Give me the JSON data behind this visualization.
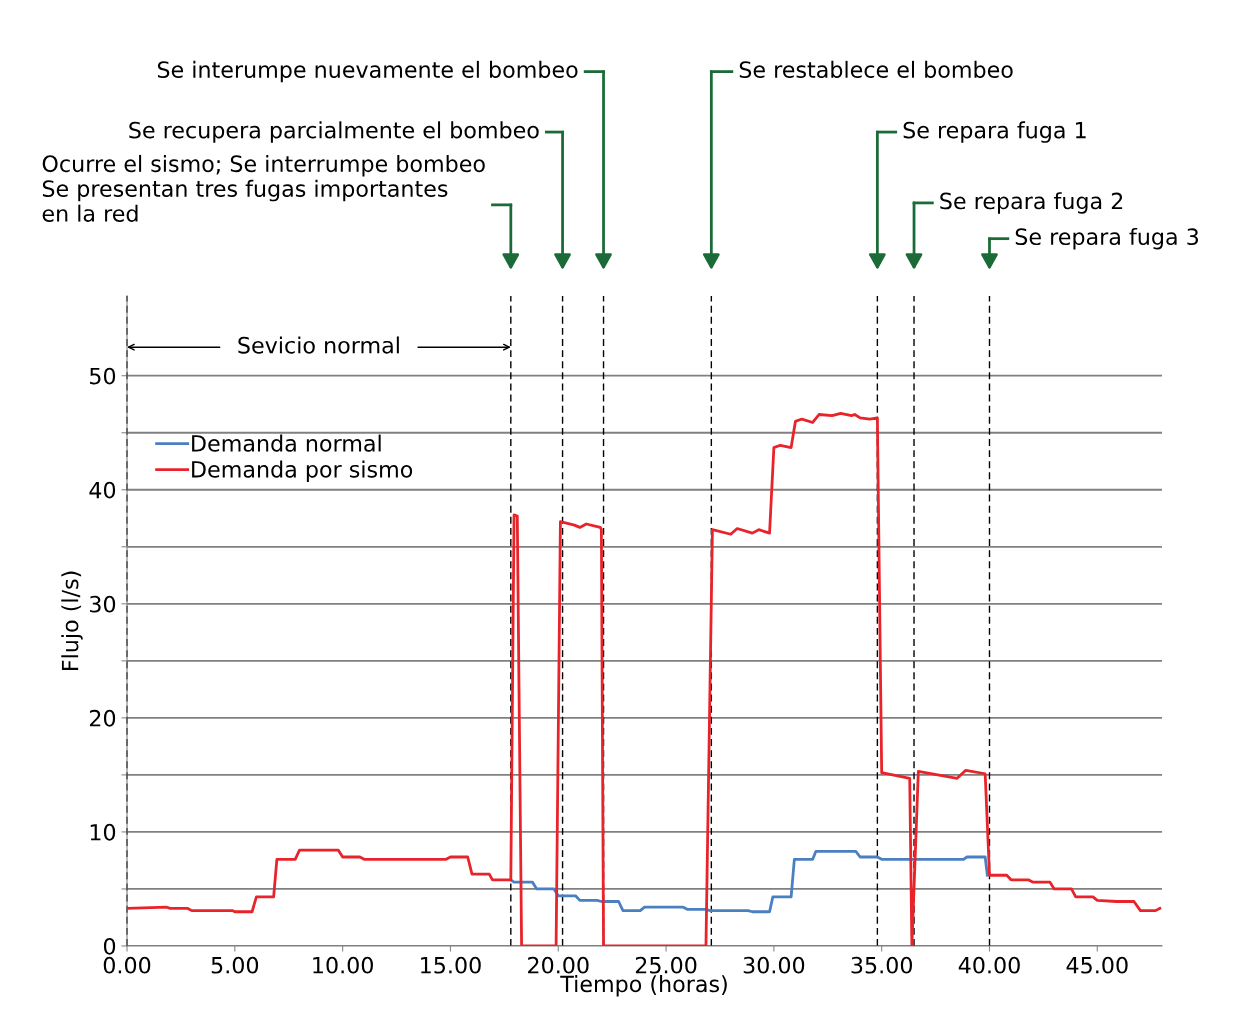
{
  "chart_data": {
    "type": "line",
    "xlabel": "Tiempo (horas)",
    "ylabel": "Flujo (l/s)",
    "xlim": [
      0,
      48
    ],
    "ylim": [
      0,
      57
    ],
    "xticks": [
      {
        "value": 0,
        "label": "0.00"
      },
      {
        "value": 5,
        "label": "5.00"
      },
      {
        "value": 10,
        "label": "10.00"
      },
      {
        "value": 15,
        "label": "15.00"
      },
      {
        "value": 20,
        "label": "20.00"
      },
      {
        "value": 25,
        "label": "25.00"
      },
      {
        "value": 30,
        "label": "30.00"
      },
      {
        "value": 35,
        "label": "35.00"
      },
      {
        "value": 40,
        "label": "40.00"
      },
      {
        "value": 45,
        "label": "45.00"
      }
    ],
    "yticks": [
      0,
      {
        "value": 5,
        "label": null
      },
      10,
      {
        "value": 15,
        "label": null
      },
      20,
      {
        "value": 25,
        "label": null
      },
      30,
      {
        "value": 35,
        "label": null
      },
      40,
      {
        "value": 45,
        "label": null
      },
      50
    ],
    "grid": "y",
    "legend": "top left",
    "marker": "none",
    "line_style": "solid",
    "series": [
      {
        "name": "Demanda normal",
        "color": "#4a7fc1",
        "x": [
          17.8,
          17.95,
          18.8,
          19.0,
          19.8,
          20.0,
          20.8,
          21.0,
          21.8,
          22.0,
          22.8,
          23.0,
          23.8,
          24.0,
          25.8,
          26.0,
          26.85,
          27.05,
          28.8,
          29.0,
          29.8,
          29.95,
          30.8,
          30.95,
          31.8,
          31.95,
          33.8,
          34.0,
          34.8,
          35.0,
          38.8,
          38.95,
          39.8,
          39.9
        ],
        "values": [
          5.8,
          5.6,
          5.6,
          5.0,
          5.0,
          4.4,
          4.4,
          4.0,
          4.0,
          3.9,
          3.9,
          3.1,
          3.1,
          3.4,
          3.4,
          3.2,
          3.2,
          3.1,
          3.1,
          3.0,
          3.0,
          4.3,
          4.3,
          7.6,
          7.6,
          8.3,
          8.3,
          7.8,
          7.8,
          7.6,
          7.6,
          7.8,
          7.8,
          6.2
        ]
      },
      {
        "name": "Demanda por sismo",
        "color": "#e8232a",
        "x": [
          0,
          1.85,
          2.0,
          2.8,
          3.0,
          4.9,
          5.0,
          5.8,
          6.0,
          6.8,
          6.95,
          7.8,
          8.0,
          9.8,
          10.0,
          10.8,
          11.0,
          14.8,
          15.0,
          15.8,
          16.0,
          16.8,
          16.95,
          17.8,
          17.95,
          18.1,
          18.3,
          19.9,
          20.1,
          20.75,
          21.0,
          21.3,
          21.95,
          22.0,
          22.1,
          26.85,
          27.15,
          28.0,
          28.3,
          29.0,
          29.3,
          29.8,
          30.0,
          30.3,
          30.8,
          31.0,
          31.3,
          31.8,
          32.1,
          32.7,
          33.1,
          33.6,
          33.75,
          34.0,
          34.45,
          34.8,
          35.0,
          36.3,
          36.4,
          36.7,
          38.5,
          38.9,
          39.8,
          40.0,
          40.8,
          41.0,
          41.8,
          42.0,
          42.8,
          43.0,
          43.8,
          44.0,
          44.8,
          45.0,
          45.9,
          46.7,
          47.0,
          47.7,
          47.9
        ],
        "values": [
          3.3,
          3.4,
          3.3,
          3.3,
          3.1,
          3.1,
          3.0,
          3.0,
          4.3,
          4.3,
          7.6,
          7.6,
          8.4,
          8.4,
          7.8,
          7.8,
          7.6,
          7.6,
          7.8,
          7.8,
          6.3,
          6.3,
          5.8,
          5.8,
          37.8,
          37.7,
          0,
          0,
          37.2,
          36.9,
          36.7,
          37.0,
          36.7,
          36.5,
          0,
          0,
          36.5,
          36.1,
          36.6,
          36.2,
          36.5,
          36.2,
          43.7,
          43.9,
          43.7,
          46.0,
          46.2,
          45.9,
          46.6,
          46.5,
          46.7,
          46.5,
          46.6,
          46.3,
          46.2,
          46.3,
          15.2,
          14.7,
          0,
          15.3,
          14.7,
          15.4,
          15.1,
          6.2,
          6.2,
          5.8,
          5.8,
          5.6,
          5.6,
          5.0,
          5.0,
          4.3,
          4.3,
          4.0,
          3.9,
          3.9,
          3.1,
          3.1,
          3.3
        ]
      }
    ],
    "ref_lines": [
      {
        "axis": "x",
        "value": 0,
        "line_style": "dashed",
        "color": "#000000"
      },
      {
        "axis": "x",
        "value": 17.8,
        "line_style": "dashed",
        "color": "#000000"
      },
      {
        "axis": "x",
        "value": 20.2,
        "line_style": "dashed",
        "color": "#000000"
      },
      {
        "axis": "x",
        "value": 22.1,
        "line_style": "dashed",
        "color": "#000000"
      },
      {
        "axis": "x",
        "value": 27.1,
        "line_style": "dashed",
        "color": "#000000"
      },
      {
        "axis": "x",
        "value": 34.8,
        "line_style": "dashed",
        "color": "#000000"
      },
      {
        "axis": "x",
        "value": 36.5,
        "line_style": "dashed",
        "color": "#000000"
      },
      {
        "axis": "x",
        "value": 40.0,
        "line_style": "dashed",
        "color": "#000000"
      }
    ],
    "annotations": [
      {
        "text": "Sevicio normal",
        "x": 17.8,
        "y": 52.5
      },
      "Ocurre el sismo; Se interrumpe bombeo\nSe presentan tres fugas importantes\nen la red",
      "Se recupera parcialmente el bombeo",
      "Se interumpe nuevamente el bombeo",
      "Se restablece el bombeo",
      "Se repara fuga 1",
      "Se repara fuga 2",
      "Se repara fuga 3"
    ]
  }
}
